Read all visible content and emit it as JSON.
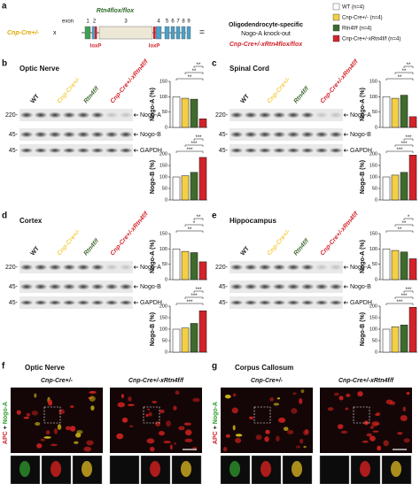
{
  "panel_a": {
    "letter": "a",
    "cre": "Cnp-Cre+/-",
    "cross": "x",
    "flox": "Rtn4flox/flox",
    "exon": "exon",
    "exon_numbers": [
      "1",
      "2",
      "3",
      "4",
      "5",
      "6",
      "7",
      "8",
      "9"
    ],
    "loxp": [
      "loxP",
      "loxP"
    ],
    "equals": "=",
    "description": [
      "Oligodendrocyte-specific",
      "Nogo-A knock-out"
    ],
    "result": "Cnp-Cre+/-xRtn4flox/flox",
    "legend": [
      {
        "label": "WT (n=4)",
        "color": "#ffffff"
      },
      {
        "label": "Cnp-Cre+/- (n=4)",
        "color": "#f3cf45"
      },
      {
        "label": "Rtn4f/f (n=4)",
        "color": "#3f6b2d"
      },
      {
        "label": "Cnp-Cre+/-xRtn4f/f (n=4)",
        "color": "#d3232a"
      }
    ]
  },
  "blots": [
    {
      "letter": "b",
      "title": "Optic Nerve",
      "lanes": [
        "WT",
        "Cnp-Cre+/-",
        "Rtn4f/f",
        "Cnp-Cre+/-xRtn4f/f"
      ],
      "markers": [
        "220-",
        "45-",
        "45-"
      ],
      "bands": [
        "Nogo-A",
        "Nogo-B",
        "GAPDH"
      ],
      "charts": [
        {
          "ylabel": "Nogo-A (%)",
          "ylim": [
            0,
            150
          ],
          "yticks": [
            0,
            50,
            100,
            150
          ],
          "values": [
            100,
            95,
            92,
            28
          ],
          "significance": [
            "**",
            "**",
            "**"
          ]
        },
        {
          "ylabel": "Nogo-B (%)",
          "ylim": [
            0,
            200
          ],
          "yticks": [
            0,
            50,
            100,
            150,
            200
          ],
          "values": [
            100,
            105,
            120,
            185
          ],
          "significance": [
            "***",
            "***",
            "***"
          ]
        }
      ]
    },
    {
      "letter": "c",
      "title": "Spinal Cord",
      "lanes": [
        "WT",
        "Cnp-Cre+/-",
        "Rtn4f/f",
        "Cnp-Cre+/-xRtn4f/f"
      ],
      "markers": [
        "220-",
        "45-",
        "45-"
      ],
      "bands": [
        "Nogo-A",
        "Nogo-B",
        "GAPDH"
      ],
      "charts": [
        {
          "ylabel": "Nogo-A (%)",
          "ylim": [
            0,
            150
          ],
          "yticks": [
            0,
            50,
            100,
            150
          ],
          "values": [
            100,
            95,
            105,
            35
          ],
          "significance": [
            "**",
            "**",
            "**"
          ]
        },
        {
          "ylabel": "Nogo-B (%)",
          "ylim": [
            0,
            200
          ],
          "yticks": [
            0,
            50,
            100,
            150,
            200
          ],
          "values": [
            100,
            108,
            120,
            195
          ],
          "significance": [
            "***",
            "***",
            "***"
          ]
        }
      ]
    },
    {
      "letter": "d",
      "title": "Cortex",
      "lanes": [
        "WT",
        "Cnp-Cre+/-",
        "Rtn4f/f",
        "Cnp-Cre+/-xRtn4f/f"
      ],
      "markers": [
        "220-",
        "45-",
        "45-"
      ],
      "bands": [
        "Nogo-A",
        "Nogo-B",
        "GAPDH"
      ],
      "charts": [
        {
          "ylabel": "Nogo-A (%)",
          "ylim": [
            0,
            150
          ],
          "yticks": [
            0,
            50,
            100,
            150
          ],
          "values": [
            100,
            92,
            88,
            58
          ],
          "significance": [
            "**",
            "*",
            "**"
          ]
        },
        {
          "ylabel": "Nogo-B (%)",
          "ylim": [
            0,
            200
          ],
          "yticks": [
            0,
            50,
            100,
            150,
            200
          ],
          "values": [
            100,
            105,
            125,
            180
          ],
          "significance": [
            "***",
            "***",
            "***"
          ]
        }
      ]
    },
    {
      "letter": "e",
      "title": "Hippocampus",
      "lanes": [
        "WT",
        "Cnp-Cre+/-",
        "Rtn4f/f",
        "Cnp-Cre+/-xRtn4f/f"
      ],
      "markers": [
        "220-",
        "45-",
        "45-"
      ],
      "bands": [
        "Nogo-A",
        "Nogo-B",
        "GAPDH"
      ],
      "charts": [
        {
          "ylabel": "Nogo-A (%)",
          "ylim": [
            0,
            150
          ],
          "yticks": [
            0,
            50,
            100,
            150
          ],
          "values": [
            100,
            95,
            90,
            68
          ],
          "significance": [
            "**",
            "**",
            "*"
          ]
        },
        {
          "ylabel": "Nogo-B (%)",
          "ylim": [
            0,
            200
          ],
          "yticks": [
            0,
            50,
            100,
            150,
            200
          ],
          "values": [
            100,
            110,
            118,
            195
          ],
          "significance": [
            "***",
            "***",
            "***"
          ]
        }
      ]
    }
  ],
  "microscopy": [
    {
      "letter": "f",
      "title": "Optic Nerve",
      "columns": [
        "Cnp-Cre+/-",
        "Cnp-Cre+/-xRtn4f/f"
      ],
      "stain": [
        "APC",
        "+",
        "Nogo-A"
      ]
    },
    {
      "letter": "g",
      "title": "Corpus Callosum",
      "columns": [
        "Cnp-Cre+/-",
        "Cnp-Cre+/-xRtn4f/f"
      ],
      "stain": [
        "APC",
        "+",
        "Nogo-A"
      ]
    }
  ]
}
